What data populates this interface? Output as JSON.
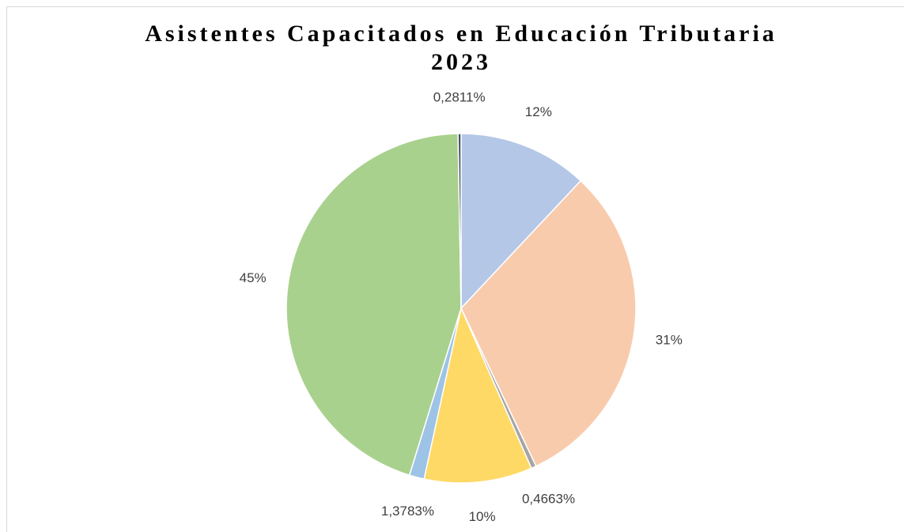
{
  "chart_data": {
    "type": "pie",
    "title": "Asistentes Capacitados en Educación Tributaria",
    "subtitle": "2023",
    "values": [
      12,
      31,
      0.4663,
      10,
      1.3783,
      45,
      0.2811
    ],
    "value_labels": [
      "12%",
      "31%",
      "0,4663%",
      "10%",
      "1,3783%",
      "45%",
      "0,2811%"
    ],
    "colors": [
      "#b4c7e7",
      "#f8cbad",
      "#a5a5a5",
      "#ffd966",
      "#9dc3e6",
      "#a9d18e",
      "#44546a"
    ]
  }
}
